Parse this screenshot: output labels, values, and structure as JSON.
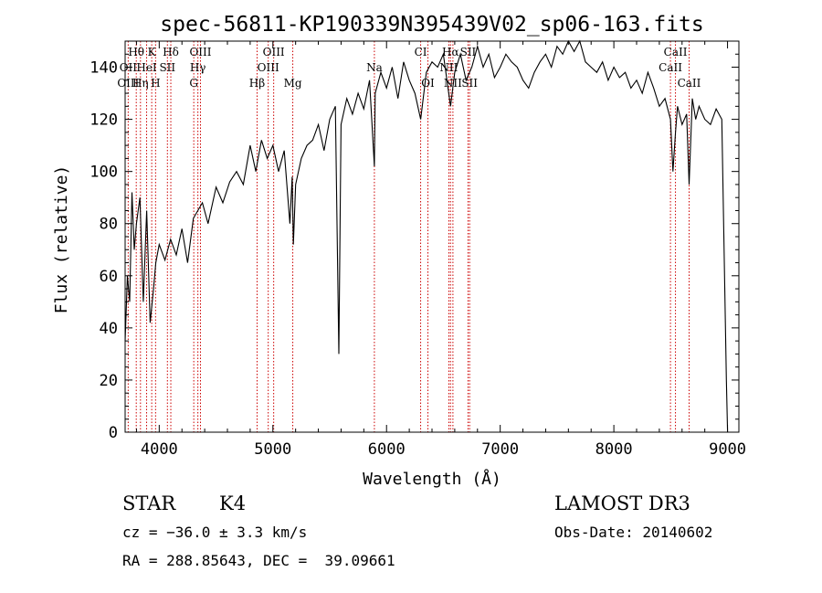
{
  "chart_data": {
    "type": "line",
    "title": "spec-56811-KP190339N395439V02_sp06-163.fits",
    "xlabel": "Wavelength (Å)",
    "ylabel": "Flux (relative)",
    "xlim": [
      3700,
      9100
    ],
    "ylim": [
      0,
      150
    ],
    "xticks": [
      4000,
      5000,
      6000,
      7000,
      8000,
      9000
    ],
    "yticks": [
      0,
      20,
      40,
      60,
      80,
      100,
      120,
      140
    ],
    "series": [
      {
        "name": "spectrum",
        "x": [
          3700,
          3720,
          3740,
          3760,
          3780,
          3800,
          3830,
          3860,
          3890,
          3920,
          3950,
          3970,
          4000,
          4050,
          4100,
          4150,
          4200,
          4250,
          4300,
          4340,
          4380,
          4430,
          4500,
          4560,
          4620,
          4680,
          4740,
          4800,
          4850,
          4870,
          4900,
          4950,
          5000,
          5050,
          5100,
          5150,
          5170,
          5180,
          5200,
          5250,
          5300,
          5350,
          5400,
          5450,
          5500,
          5550,
          5580,
          5600,
          5650,
          5700,
          5750,
          5800,
          5850,
          5893,
          5900,
          5950,
          6000,
          6050,
          6100,
          6150,
          6200,
          6250,
          6300,
          6350,
          6400,
          6450,
          6500,
          6563,
          6600,
          6650,
          6700,
          6750,
          6800,
          6850,
          6900,
          6950,
          7000,
          7050,
          7100,
          7150,
          7200,
          7250,
          7300,
          7350,
          7400,
          7450,
          7500,
          7550,
          7600,
          7650,
          7700,
          7750,
          7800,
          7850,
          7900,
          7950,
          8000,
          8050,
          8100,
          8150,
          8200,
          8250,
          8300,
          8350,
          8400,
          8450,
          8498,
          8520,
          8542,
          8560,
          8600,
          8640,
          8662,
          8690,
          8720,
          8750,
          8800,
          8850,
          8900,
          8950,
          8990,
          9000
        ],
        "values": [
          35,
          60,
          50,
          92,
          70,
          80,
          90,
          50,
          85,
          42,
          55,
          65,
          72,
          66,
          74,
          68,
          78,
          65,
          82,
          85,
          88,
          80,
          94,
          88,
          96,
          100,
          95,
          110,
          100,
          105,
          112,
          105,
          110,
          100,
          108,
          80,
          98,
          72,
          95,
          105,
          110,
          112,
          118,
          108,
          120,
          125,
          30,
          118,
          128,
          122,
          130,
          124,
          135,
          102,
          130,
          138,
          132,
          140,
          128,
          142,
          135,
          130,
          120,
          138,
          142,
          140,
          145,
          125,
          138,
          145,
          135,
          140,
          148,
          140,
          145,
          136,
          140,
          145,
          142,
          140,
          135,
          132,
          138,
          142,
          145,
          140,
          148,
          145,
          150,
          146,
          150,
          142,
          140,
          138,
          142,
          135,
          140,
          136,
          138,
          132,
          135,
          130,
          138,
          132,
          125,
          128,
          120,
          100,
          115,
          125,
          118,
          122,
          95,
          128,
          120,
          125,
          120,
          118,
          124,
          120,
          20,
          0
        ]
      }
    ],
    "annotations": [
      {
        "label": "Hθ",
        "x": 3798,
        "row": 1
      },
      {
        "label": "K",
        "x": 3934,
        "row": 1
      },
      {
        "label": "Hδ",
        "x": 4102,
        "row": 1
      },
      {
        "label": "OIII",
        "x": 4363,
        "row": 1
      },
      {
        "label": "OIII",
        "x": 5007,
        "row": 1
      },
      {
        "label": "CI",
        "x": 6300,
        "row": 1
      },
      {
        "label": "Hα",
        "x": 6563,
        "row": 1
      },
      {
        "label": "SII",
        "x": 6717,
        "row": 1
      },
      {
        "label": "CaII",
        "x": 8542,
        "row": 1
      },
      {
        "label": "OII",
        "x": 3727,
        "row": 2
      },
      {
        "label": "HeI",
        "x": 3889,
        "row": 2
      },
      {
        "label": "SII",
        "x": 4072,
        "row": 2
      },
      {
        "label": "Hγ",
        "x": 4340,
        "row": 2
      },
      {
        "label": "OIII",
        "x": 4959,
        "row": 2
      },
      {
        "label": "Na",
        "x": 5893,
        "row": 2
      },
      {
        "label": "NII",
        "x": 6548,
        "row": 2
      },
      {
        "label": "CaII",
        "x": 8498,
        "row": 2
      },
      {
        "label": "OIII",
        "x": 3727,
        "row": 3
      },
      {
        "label": "Hη",
        "x": 3835,
        "row": 3
      },
      {
        "label": "H",
        "x": 3968,
        "row": 3
      },
      {
        "label": "G",
        "x": 4304,
        "row": 3
      },
      {
        "label": "Hβ",
        "x": 4861,
        "row": 3
      },
      {
        "label": "Mg",
        "x": 5175,
        "row": 3
      },
      {
        "label": "OI",
        "x": 6364,
        "row": 3
      },
      {
        "label": "NII",
        "x": 6584,
        "row": 3
      },
      {
        "label": "SII",
        "x": 6731,
        "row": 3
      },
      {
        "label": "CaII",
        "x": 8662,
        "row": 3
      }
    ],
    "line_markers": [
      3727,
      3798,
      3835,
      3889,
      3934,
      3968,
      4072,
      4102,
      4304,
      4340,
      4363,
      4861,
      4959,
      5007,
      5175,
      5893,
      6300,
      6364,
      6548,
      6563,
      6584,
      6717,
      6731,
      8498,
      8542,
      8662
    ],
    "marker_color": "#cc0000",
    "line_color": "#000000",
    "grid": false
  },
  "info": {
    "object_class": "STAR",
    "subclass": "K4",
    "redshift": "cz = −36.0 ± 3.3 km/s",
    "coords": "RA = 288.85643, DEC =  39.09661",
    "survey": "LAMOST DR3",
    "obs_date": "Obs-Date: 20140602"
  }
}
